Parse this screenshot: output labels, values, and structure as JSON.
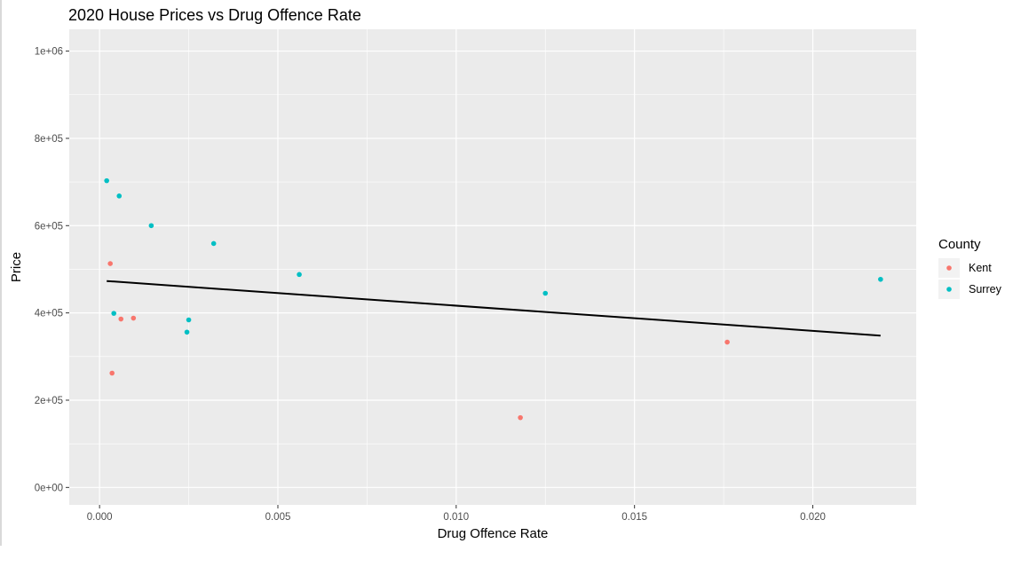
{
  "chart_data": {
    "type": "scatter",
    "title": "2020 House Prices vs Drug Offence Rate",
    "xlabel": "Drug Offence Rate",
    "ylabel": "Price",
    "xlim": [
      -0.00085,
      0.0229
    ],
    "ylim": [
      -40000,
      1050000
    ],
    "x_ticks": [
      {
        "value": 0.0,
        "label": "0.000"
      },
      {
        "value": 0.005,
        "label": "0.005"
      },
      {
        "value": 0.01,
        "label": "0.010"
      },
      {
        "value": 0.015,
        "label": "0.015"
      },
      {
        "value": 0.02,
        "label": "0.020"
      }
    ],
    "y_ticks": [
      {
        "value": 0,
        "label": "0e+00"
      },
      {
        "value": 200000,
        "label": "2e+05"
      },
      {
        "value": 400000,
        "label": "4e+05"
      },
      {
        "value": 600000,
        "label": "6e+05"
      },
      {
        "value": 800000,
        "label": "8e+05"
      },
      {
        "value": 1000000,
        "label": "1e+06"
      }
    ],
    "grid": true,
    "panel_background": "#ebebeb",
    "legend": {
      "title": "County",
      "placement": "right"
    },
    "series": [
      {
        "name": "Kent",
        "color": "#f8766d",
        "points": [
          {
            "x": 0.0003,
            "y": 513000
          },
          {
            "x": 0.00035,
            "y": 262000
          },
          {
            "x": 0.0006,
            "y": 386000
          },
          {
            "x": 0.00095,
            "y": 388000
          },
          {
            "x": 0.0118,
            "y": 160000
          },
          {
            "x": 0.0176,
            "y": 333000
          }
        ]
      },
      {
        "name": "Surrey",
        "color": "#00bfc4",
        "points": [
          {
            "x": 0.0002,
            "y": 703000
          },
          {
            "x": 0.0004,
            "y": 399000
          },
          {
            "x": 0.00055,
            "y": 668000
          },
          {
            "x": 0.00145,
            "y": 600000
          },
          {
            "x": 0.00245,
            "y": 356000
          },
          {
            "x": 0.0025,
            "y": 384000
          },
          {
            "x": 0.0032,
            "y": 559000
          },
          {
            "x": 0.0056,
            "y": 488000
          },
          {
            "x": 0.0125,
            "y": 445000
          },
          {
            "x": 0.0219,
            "y": 477000
          }
        ]
      }
    ],
    "trend_line": {
      "method": "linear",
      "color": "#000000",
      "points": [
        {
          "x": 0.0002,
          "y": 473000
        },
        {
          "x": 0.0219,
          "y": 348000
        }
      ]
    }
  }
}
